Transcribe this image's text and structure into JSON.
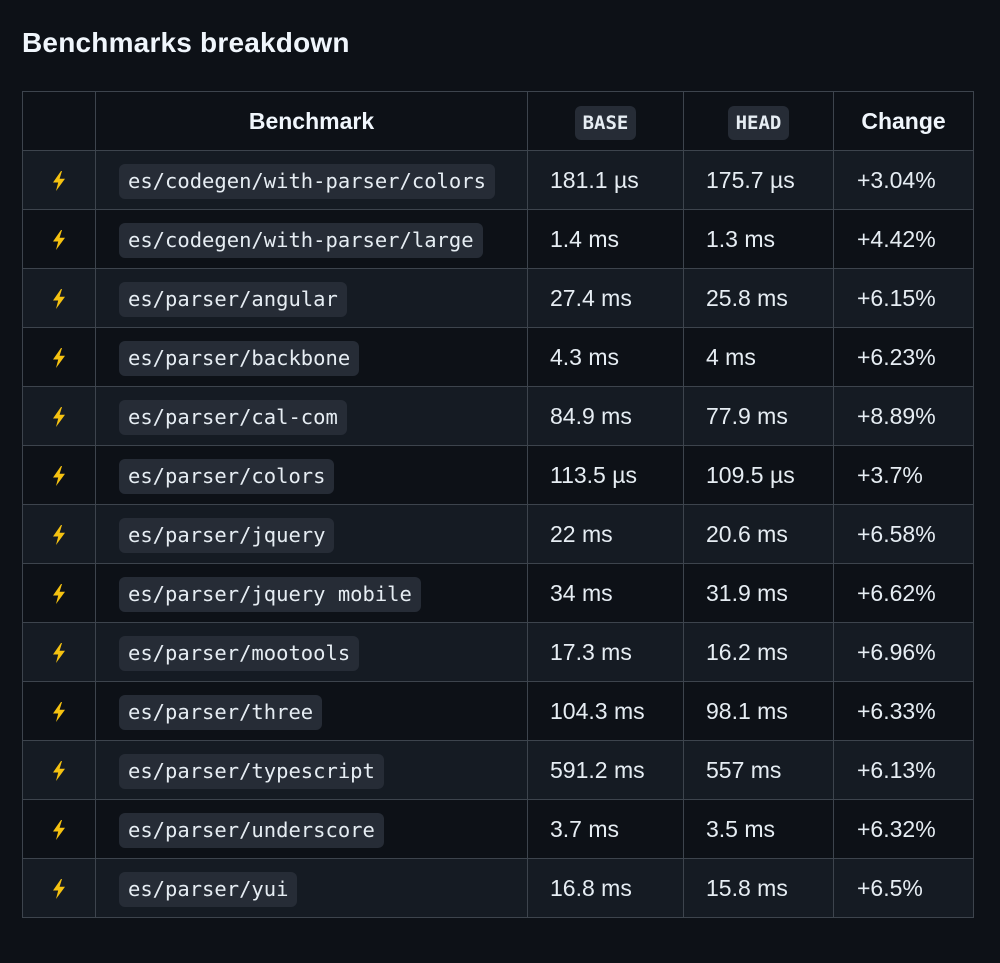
{
  "heading": "Benchmarks breakdown",
  "table": {
    "headers": [
      "",
      "Benchmark",
      "BASE",
      "HEAD",
      "Change"
    ],
    "icon": "high-voltage-icon",
    "rows": [
      {
        "benchmark": "es/codegen/with-parser/colors",
        "base": "181.1 µs",
        "head": "175.7 µs",
        "change": "+3.04%"
      },
      {
        "benchmark": "es/codegen/with-parser/large",
        "base": "1.4 ms",
        "head": "1.3 ms",
        "change": "+4.42%"
      },
      {
        "benchmark": "es/parser/angular",
        "base": "27.4 ms",
        "head": "25.8 ms",
        "change": "+6.15%"
      },
      {
        "benchmark": "es/parser/backbone",
        "base": "4.3 ms",
        "head": "4 ms",
        "change": "+6.23%"
      },
      {
        "benchmark": "es/parser/cal-com",
        "base": "84.9 ms",
        "head": "77.9 ms",
        "change": "+8.89%"
      },
      {
        "benchmark": "es/parser/colors",
        "base": "113.5 µs",
        "head": "109.5 µs",
        "change": "+3.7%"
      },
      {
        "benchmark": "es/parser/jquery",
        "base": "22 ms",
        "head": "20.6 ms",
        "change": "+6.58%"
      },
      {
        "benchmark": "es/parser/jquery mobile",
        "base": "34 ms",
        "head": "31.9 ms",
        "change": "+6.62%"
      },
      {
        "benchmark": "es/parser/mootools",
        "base": "17.3 ms",
        "head": "16.2 ms",
        "change": "+6.96%"
      },
      {
        "benchmark": "es/parser/three",
        "base": "104.3 ms",
        "head": "98.1 ms",
        "change": "+6.33%"
      },
      {
        "benchmark": "es/parser/typescript",
        "base": "591.2 ms",
        "head": "557 ms",
        "change": "+6.13%"
      },
      {
        "benchmark": "es/parser/underscore",
        "base": "3.7 ms",
        "head": "3.5 ms",
        "change": "+6.32%"
      },
      {
        "benchmark": "es/parser/yui",
        "base": "16.8 ms",
        "head": "15.8 ms",
        "change": "+6.5%"
      }
    ]
  },
  "colors": {
    "background": "#0d1117",
    "row_alt": "#151b23",
    "border": "#3d444d",
    "code_bg": "#262c36",
    "bolt": "#f5c211"
  }
}
